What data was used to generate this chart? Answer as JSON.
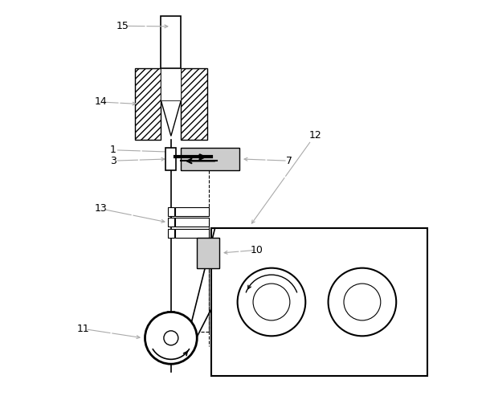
{
  "bg_color": "#ffffff",
  "line_color": "#000000",
  "gray_color": "#aaaaaa",
  "light_gray": "#cccccc",
  "figsize": [
    6.05,
    4.98
  ],
  "dpi": 100
}
